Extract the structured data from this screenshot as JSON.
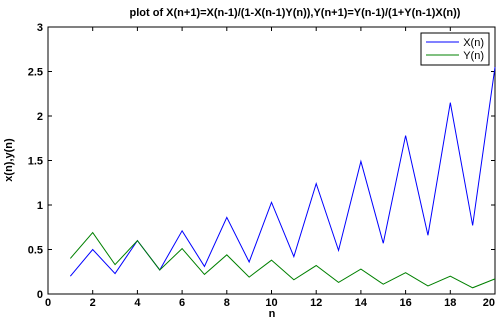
{
  "chart_data": {
    "type": "line",
    "title": "plot of X(n+1)=X(n-1)/(1-X(n-1)Y(n)),Y(n+1)=Y(n-1)/(1+Y(n-1)X(n))",
    "xlabel": "n",
    "ylabel": "x(n),y(n)",
    "xlim": [
      0,
      20
    ],
    "ylim": [
      0,
      3
    ],
    "xticks": [
      0,
      2,
      4,
      6,
      8,
      10,
      12,
      14,
      16,
      18,
      20
    ],
    "yticks": [
      0,
      0.5,
      1,
      1.5,
      2,
      2.5,
      3
    ],
    "xtick_labels": [
      "0",
      "2",
      "4",
      "6",
      "8",
      "10",
      "12",
      "14",
      "16",
      "18",
      "20"
    ],
    "ytick_labels": [
      "0",
      "0.5",
      "1",
      "1.5",
      "2",
      "2.5",
      "3"
    ],
    "grid": false,
    "legend_position": "top-right",
    "x": [
      1,
      2,
      3,
      4,
      5,
      6,
      7,
      8,
      9,
      10,
      11,
      12,
      13,
      14,
      15,
      16,
      17,
      18,
      19,
      20
    ],
    "series": [
      {
        "name": "X(n)",
        "color": "#0000ff",
        "values": [
          0.2,
          0.5,
          0.23,
          0.6,
          0.27,
          0.71,
          0.31,
          0.86,
          0.36,
          1.03,
          0.42,
          1.24,
          0.49,
          1.49,
          0.57,
          1.78,
          0.66,
          2.15,
          0.77,
          2.55
        ]
      },
      {
        "name": "Y(n)",
        "color": "#008000",
        "values": [
          0.4,
          0.69,
          0.33,
          0.6,
          0.27,
          0.51,
          0.22,
          0.44,
          0.19,
          0.38,
          0.16,
          0.32,
          0.13,
          0.28,
          0.11,
          0.24,
          0.09,
          0.2,
          0.07,
          0.17
        ]
      }
    ]
  }
}
